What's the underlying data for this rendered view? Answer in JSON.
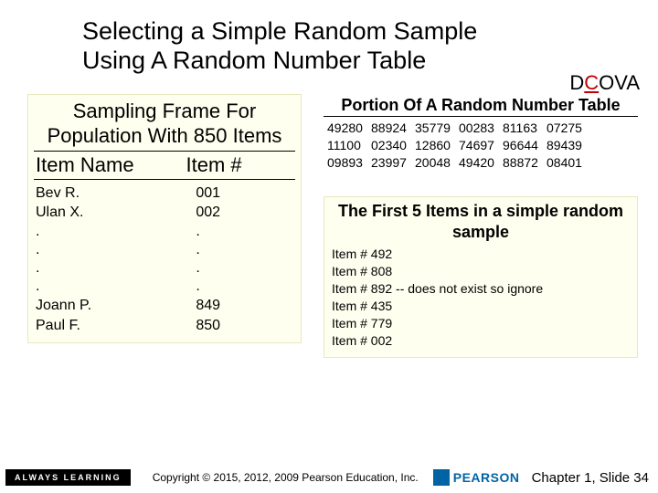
{
  "title_line1": "Selecting a Simple Random Sample",
  "title_line2": "Using A Random Number Table",
  "dcova": {
    "pre": "D",
    "underline": "C",
    "post": "OVA"
  },
  "frame": {
    "title": "Sampling Frame For Population With 850 Items",
    "header_name": "Item Name",
    "header_num": "Item #",
    "rows": [
      {
        "name": "Bev R.",
        "num": "001"
      },
      {
        "name": "Ulan X.",
        "num": "002"
      },
      {
        "name": ".",
        "num": "."
      },
      {
        "name": ".",
        "num": "."
      },
      {
        "name": ".",
        "num": "."
      },
      {
        "name": ".",
        "num": "."
      },
      {
        "name": "Joann P.",
        "num": "849"
      },
      {
        "name": "Paul F.",
        "num": "850"
      }
    ]
  },
  "rnt": {
    "title": "Portion Of A Random Number Table",
    "rows": [
      [
        "49280",
        "88924",
        "35779",
        "00283",
        "81163",
        "07275"
      ],
      [
        "11100",
        "02340",
        "12860",
        "74697",
        "96644",
        "89439"
      ],
      [
        "09893",
        "23997",
        "20048",
        "49420",
        "88872",
        "08401"
      ]
    ]
  },
  "first5": {
    "title": "The First 5 Items in a simple random sample",
    "items": [
      "Item # 492",
      "Item # 808",
      "Item # 892  --  does not exist so ignore",
      "Item # 435",
      "Item # 779",
      "Item # 002"
    ]
  },
  "footer": {
    "always_learning": "ALWAYS LEARNING",
    "copyright": "Copyright © 2015, 2012, 2009 Pearson Education, Inc.",
    "pearson": "PEARSON",
    "chapter": "Chapter 1, Slide 34"
  },
  "colors": {
    "highlight_bg": "#feffef",
    "pearson_blue": "#0064a4",
    "underline_red": "#c00000"
  }
}
